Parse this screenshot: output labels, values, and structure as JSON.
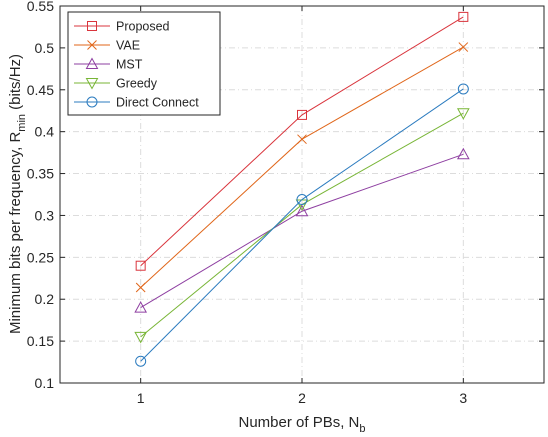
{
  "chart_data": {
    "type": "line",
    "xlabel": "Number of PBs, N",
    "xlabel_sub": "b",
    "ylabel": "Minimum bits per frequency, R",
    "ylabel_sub": "min",
    "ylabel_unit": " (bits/Hz)",
    "x": [
      1,
      2,
      3
    ],
    "xlim": [
      0.5,
      3.5
    ],
    "ylim": [
      0.1,
      0.55
    ],
    "xticks": [
      "1",
      "2",
      "3"
    ],
    "yticks": [
      "0.1",
      "0.15",
      "0.2",
      "0.25",
      "0.3",
      "0.35",
      "0.4",
      "0.45",
      "0.5",
      "0.55"
    ],
    "grid": true,
    "legend_position": "top-left",
    "series": [
      {
        "name": "Proposed",
        "values": [
          0.24,
          0.42,
          0.537
        ],
        "color": "#d9343c",
        "marker": "square"
      },
      {
        "name": "VAE",
        "values": [
          0.214,
          0.391,
          0.501
        ],
        "color": "#e0661a",
        "marker": "x"
      },
      {
        "name": "MST",
        "values": [
          0.19,
          0.305,
          0.373
        ],
        "color": "#8e3fa1",
        "marker": "triangle-up"
      },
      {
        "name": "Greedy",
        "values": [
          0.155,
          0.313,
          0.422
        ],
        "color": "#78b536",
        "marker": "triangle-down"
      },
      {
        "name": "Direct Connect",
        "values": [
          0.126,
          0.319,
          0.451
        ],
        "color": "#2b7bbf",
        "marker": "circle"
      }
    ]
  }
}
